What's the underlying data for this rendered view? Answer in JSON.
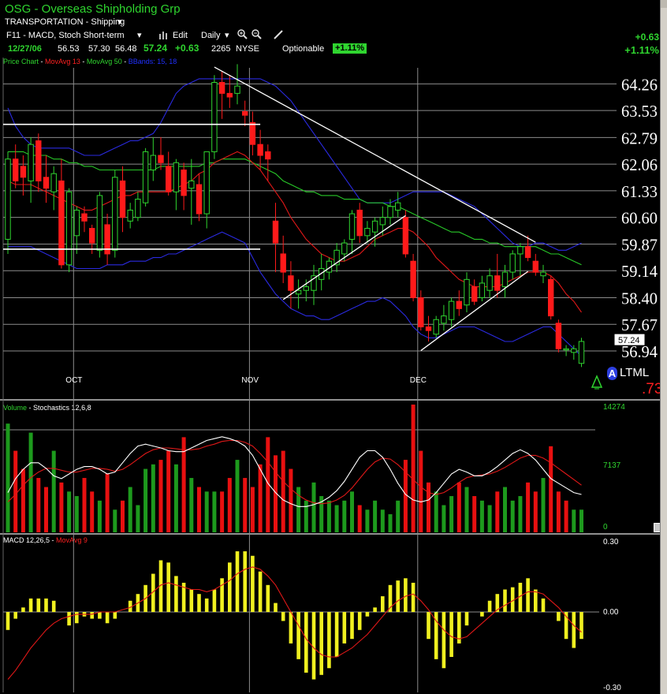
{
  "header": {
    "symbol_title": "OSG - Overseas Shipholding Grp",
    "sector": "TRANSPORTATION - Shipping",
    "study_set": "F11 - MACD, Stoch Short-term",
    "edit_label": "Edit",
    "period": "Daily",
    "icons": [
      "bar-chart-icon",
      "zoom-in-icon",
      "zoom-out-icon",
      "pencil-icon",
      "caret-down-icon"
    ]
  },
  "quote": {
    "date": "12/27/06",
    "open": "56.53",
    "high": "57.30",
    "low": "56.48",
    "close": "57.24",
    "change": "+0.63",
    "volume": "2265",
    "exchange": "NYSE",
    "optionable": "Optionable",
    "pct_badge": "+1.11%",
    "right_change": "+0.63",
    "right_pct": "+1.11%"
  },
  "legends": {
    "price": [
      {
        "text": "Price Chart",
        "color": "#2fd52f"
      },
      {
        "text": "MovAvg 13",
        "color": "#ff2020"
      },
      {
        "text": "MovAvg 50",
        "color": "#2fd52f"
      },
      {
        "text": "BBands: 15, 18",
        "color": "#2030ff"
      }
    ],
    "volume": [
      {
        "text": "Volume",
        "color": "#2fd52f"
      },
      {
        "text": "Stochastics 12,6,8",
        "color": "#ffffff"
      }
    ],
    "macd": [
      {
        "text": "MACD 12,26,5",
        "color": "#ffffff"
      },
      {
        "text": "MovAvg 9",
        "color": "#ff2020"
      }
    ]
  },
  "alert": {
    "letter": "A",
    "text": "LTML",
    "value": ".73"
  },
  "colors": {
    "up": "#2fd52f",
    "down": "#ff1a1a",
    "ma13": "#e01818",
    "ma50": "#28c828",
    "bb": "#2a2ae0",
    "grid": "#8c8c8c",
    "macd": "#f0f020",
    "stoch": "#ffffff"
  },
  "chart_data": [
    {
      "type": "candlestick",
      "title": "OSG - Overseas Shipholding Grp",
      "y_ticks": [
        "64.26",
        "63.53",
        "62.79",
        "62.06",
        "61.33",
        "60.60",
        "59.87",
        "59.14",
        "58.40",
        "57.67",
        "56.94"
      ],
      "ylim": [
        56.4,
        64.7
      ],
      "x_labels": [
        "OCT",
        "NOV",
        "DEC"
      ],
      "x_label_index": [
        9,
        32,
        54
      ],
      "last_price_label": "57.24",
      "candles": [
        [
          60.0,
          62.4,
          59.6,
          62.2
        ],
        [
          62.2,
          62.6,
          61.4,
          61.6
        ],
        [
          62.0,
          62.3,
          61.2,
          61.7
        ],
        [
          61.6,
          62.8,
          61.0,
          62.6
        ],
        [
          62.7,
          62.9,
          61.3,
          61.6
        ],
        [
          61.7,
          62.3,
          61.0,
          61.4
        ],
        [
          61.3,
          62.0,
          60.8,
          61.8
        ],
        [
          61.6,
          62.2,
          59.2,
          59.3
        ],
        [
          59.3,
          61.4,
          59.1,
          61.3
        ],
        [
          60.1,
          60.9,
          59.6,
          60.8
        ],
        [
          60.7,
          60.9,
          60.2,
          60.5
        ],
        [
          60.3,
          60.4,
          59.6,
          59.9
        ],
        [
          59.7,
          61.3,
          59.5,
          61.2
        ],
        [
          60.4,
          60.7,
          59.3,
          59.6
        ],
        [
          59.7,
          61.9,
          59.5,
          61.7
        ],
        [
          61.6,
          62.0,
          60.2,
          60.6
        ],
        [
          60.5,
          61.0,
          60.3,
          60.8
        ],
        [
          60.6,
          61.3,
          60.5,
          61.1
        ],
        [
          61.0,
          62.5,
          60.9,
          62.4
        ],
        [
          61.9,
          62.8,
          61.6,
          62.3
        ],
        [
          62.3,
          62.8,
          61.9,
          62.1
        ],
        [
          62.0,
          62.4,
          61.2,
          61.3
        ],
        [
          61.3,
          62.2,
          60.8,
          62.1
        ],
        [
          61.9,
          62.1,
          60.8,
          61.2
        ],
        [
          61.4,
          62.2,
          60.4,
          61.6
        ],
        [
          61.5,
          61.8,
          60.5,
          60.7
        ],
        [
          60.7,
          62.4,
          60.3,
          62.4
        ],
        [
          62.4,
          64.5,
          62.2,
          64.3
        ],
        [
          64.3,
          64.6,
          63.3,
          64.0
        ],
        [
          64.0,
          64.5,
          63.6,
          63.9
        ],
        [
          64.0,
          64.8,
          63.7,
          64.2
        ],
        [
          63.5,
          63.8,
          63.1,
          63.4
        ],
        [
          63.2,
          63.5,
          62.3,
          62.6
        ],
        [
          62.6,
          63.0,
          61.9,
          62.3
        ],
        [
          62.4,
          62.6,
          61.6,
          62.2
        ],
        [
          60.5,
          61.0,
          59.1,
          59.9
        ],
        [
          59.6,
          60.1,
          58.8,
          59.1
        ],
        [
          59.0,
          59.4,
          58.1,
          58.6
        ],
        [
          58.5,
          58.9,
          58.1,
          58.6
        ],
        [
          58.6,
          58.9,
          58.3,
          58.7
        ],
        [
          58.6,
          59.3,
          58.2,
          59.0
        ],
        [
          58.9,
          59.6,
          58.6,
          59.2
        ],
        [
          59.1,
          59.5,
          58.9,
          59.4
        ],
        [
          59.3,
          59.9,
          59.1,
          59.7
        ],
        [
          59.6,
          60.0,
          59.4,
          59.9
        ],
        [
          60.0,
          60.8,
          59.6,
          60.7
        ],
        [
          60.8,
          61.0,
          59.9,
          60.1
        ],
        [
          60.1,
          60.5,
          59.9,
          60.3
        ],
        [
          60.2,
          60.6,
          59.8,
          60.5
        ],
        [
          60.4,
          60.9,
          60.1,
          60.6
        ],
        [
          60.6,
          61.1,
          60.4,
          60.9
        ],
        [
          60.8,
          61.3,
          60.6,
          61.0
        ],
        [
          60.6,
          60.8,
          59.5,
          59.6
        ],
        [
          59.4,
          59.6,
          58.3,
          58.4
        ],
        [
          58.4,
          58.6,
          57.5,
          57.6
        ],
        [
          57.6,
          57.9,
          57.2,
          57.5
        ],
        [
          57.4,
          57.9,
          57.3,
          57.8
        ],
        [
          57.7,
          58.2,
          57.5,
          57.9
        ],
        [
          57.8,
          58.4,
          57.6,
          58.3
        ],
        [
          58.3,
          58.6,
          57.9,
          58.1
        ],
        [
          58.2,
          59.1,
          58.0,
          58.9
        ],
        [
          58.7,
          58.9,
          58.2,
          58.3
        ],
        [
          58.4,
          59.0,
          58.3,
          58.8
        ],
        [
          58.6,
          59.2,
          58.4,
          59.0
        ],
        [
          59.0,
          59.6,
          58.4,
          58.6
        ],
        [
          58.7,
          59.3,
          58.4,
          59.1
        ],
        [
          59.1,
          59.7,
          58.9,
          59.6
        ],
        [
          59.6,
          59.9,
          59.0,
          59.8
        ],
        [
          59.8,
          60.1,
          59.4,
          59.5
        ],
        [
          59.4,
          59.6,
          59.0,
          59.1
        ],
        [
          59.0,
          59.3,
          58.8,
          59.1
        ],
        [
          58.9,
          59.0,
          57.8,
          57.9
        ],
        [
          57.7,
          57.8,
          56.9,
          57.0
        ],
        [
          57.0,
          57.1,
          56.8,
          57.0
        ],
        [
          56.9,
          57.1,
          56.7,
          57.0
        ],
        [
          56.6,
          57.3,
          56.5,
          57.2
        ]
      ],
      "ma13": [
        61.6,
        61.5,
        61.5,
        61.5,
        61.4,
        61.3,
        61.2,
        61.1,
        61.0,
        60.9,
        60.8,
        60.8,
        60.9,
        61.0,
        61.1,
        61.2,
        61.2,
        61.3,
        61.3,
        61.3,
        61.3,
        61.3,
        61.4,
        61.5,
        61.6,
        61.8,
        61.9,
        62.1,
        62.2,
        62.3,
        62.4,
        62.3,
        62.1,
        61.9,
        61.6,
        61.3,
        61.0,
        60.6,
        60.3,
        60.0,
        59.8,
        59.6,
        59.5,
        59.4,
        59.4,
        59.5,
        59.6,
        59.8,
        60.0,
        60.1,
        60.2,
        60.3,
        60.3,
        60.2,
        60.0,
        59.8,
        59.5,
        59.3,
        59.1,
        58.9,
        58.8,
        58.7,
        58.7,
        58.7,
        58.7,
        58.8,
        58.9,
        59.0,
        59.1,
        59.1,
        59.1,
        59.0,
        58.8,
        58.5,
        58.3,
        58.0
      ],
      "ma50": [
        62.4,
        62.4,
        62.4,
        62.3,
        62.3,
        62.3,
        62.2,
        62.2,
        62.1,
        62.1,
        62.0,
        62.0,
        61.9,
        61.9,
        61.9,
        61.9,
        61.9,
        61.9,
        61.9,
        61.9,
        62.0,
        62.0,
        62.0,
        62.0,
        62.0,
        62.0,
        62.1,
        62.1,
        62.2,
        62.2,
        62.2,
        62.2,
        62.1,
        62.0,
        61.9,
        61.8,
        61.6,
        61.5,
        61.4,
        61.3,
        61.3,
        61.2,
        61.2,
        61.2,
        61.1,
        61.1,
        61.1,
        61.0,
        61.0,
        61.0,
        60.9,
        60.9,
        60.8,
        60.7,
        60.6,
        60.5,
        60.4,
        60.3,
        60.2,
        60.2,
        60.1,
        60.0,
        60.0,
        59.9,
        59.9,
        59.8,
        59.8,
        59.8,
        59.8,
        59.8,
        59.7,
        59.6,
        59.6,
        59.5,
        59.4,
        59.3
      ],
      "bb_upper": [
        63.6,
        63.1,
        62.8,
        62.6,
        62.5,
        62.5,
        62.5,
        62.5,
        62.5,
        62.4,
        62.3,
        62.3,
        62.3,
        62.4,
        62.5,
        62.6,
        62.7,
        62.7,
        62.8,
        62.9,
        63.2,
        63.6,
        64.0,
        64.2,
        64.3,
        64.4,
        64.4,
        64.4,
        64.4,
        64.4,
        64.4,
        64.4,
        64.4,
        64.4,
        64.3,
        64.2,
        64.0,
        63.8,
        63.5,
        63.2,
        62.9,
        62.6,
        62.3,
        62.0,
        61.7,
        61.4,
        61.1,
        61.0,
        61.0,
        61.0,
        61.0,
        61.1,
        61.2,
        61.3,
        61.3,
        61.3,
        61.3,
        61.3,
        61.2,
        61.1,
        61.0,
        60.9,
        60.7,
        60.5,
        60.3,
        60.1,
        59.9,
        59.8,
        59.8,
        59.9,
        59.9,
        59.8,
        59.7,
        59.7,
        59.8,
        59.9
      ],
      "bb_lower": [
        59.8,
        59.8,
        59.8,
        59.8,
        59.7,
        59.6,
        59.5,
        59.4,
        59.3,
        59.2,
        59.2,
        59.2,
        59.2,
        59.3,
        59.3,
        59.3,
        59.4,
        59.4,
        59.4,
        59.5,
        59.5,
        59.6,
        59.6,
        59.7,
        59.8,
        59.9,
        60.0,
        60.1,
        60.2,
        60.1,
        60.0,
        59.9,
        59.5,
        59.1,
        58.8,
        58.5,
        58.3,
        58.1,
        58.0,
        57.9,
        57.9,
        57.8,
        57.8,
        57.9,
        58.0,
        58.1,
        58.2,
        58.3,
        58.3,
        58.4,
        58.3,
        58.1,
        57.9,
        57.6,
        57.4,
        57.3,
        57.3,
        57.4,
        57.5,
        57.6,
        57.6,
        57.6,
        57.5,
        57.4,
        57.3,
        57.2,
        57.2,
        57.3,
        57.4,
        57.5,
        57.6,
        57.6,
        57.4,
        57.2,
        57.0,
        56.8
      ],
      "horizontal_lines": [
        {
          "from": 0,
          "to": 33,
          "y": 63.15
        },
        {
          "from": 0,
          "to": 33,
          "y": 59.73
        }
      ],
      "trendlines": [
        {
          "x1": 27,
          "y1": 64.72,
          "x2": 69,
          "y2": 59.92
        },
        {
          "x1": 36,
          "y1": 58.35,
          "x2": 52,
          "y2": 60.65
        },
        {
          "x1": 54,
          "y1": 56.95,
          "x2": 68,
          "y2": 59.12
        }
      ]
    },
    {
      "type": "bar",
      "title": "Volume",
      "y_ticks": [
        "14274",
        "7137",
        "0"
      ],
      "ylim": [
        0,
        14274
      ],
      "volume": [
        12000,
        9000,
        7000,
        11000,
        6000,
        5000,
        9000,
        5500,
        4500,
        4000,
        6000,
        4500,
        3500,
        6500,
        2500,
        3500,
        5000,
        3000,
        7000,
        7500,
        8000,
        9000,
        7500,
        10500,
        6000,
        5000,
        4500,
        4500,
        4500,
        6000,
        8000,
        6000,
        5000,
        7500,
        10500,
        8500,
        9000,
        7000,
        5000,
        3500,
        5500,
        4000,
        3500,
        3000,
        3500,
        4500,
        3000,
        2500,
        3500,
        2500,
        2000,
        3500,
        8000,
        14100,
        9000,
        5500,
        4500,
        3000,
        4000,
        5500,
        5000,
        4000,
        3500,
        3000,
        4500,
        5000,
        3500,
        4000,
        5500,
        4500,
        6000,
        9500,
        4500,
        3500,
        2500,
        2500
      ],
      "vol_up": [
        1,
        0,
        0,
        1,
        0,
        0,
        1,
        0,
        1,
        1,
        0,
        0,
        1,
        0,
        1,
        0,
        1,
        1,
        1,
        1,
        0,
        0,
        1,
        0,
        1,
        0,
        1,
        1,
        0,
        0,
        1,
        0,
        0,
        0,
        0,
        0,
        0,
        0,
        1,
        1,
        1,
        1,
        1,
        1,
        1,
        1,
        0,
        1,
        1,
        1,
        1,
        1,
        0,
        0,
        0,
        0,
        1,
        1,
        1,
        0,
        1,
        0,
        1,
        1,
        0,
        1,
        1,
        1,
        0,
        0,
        1,
        0,
        0,
        0,
        1,
        1
      ],
      "stoch": [
        30,
        45,
        55,
        62,
        62,
        56,
        48,
        45,
        50,
        55,
        58,
        58,
        55,
        50,
        52,
        62,
        72,
        80,
        82,
        80,
        78,
        75,
        74,
        74,
        78,
        82,
        86,
        88,
        90,
        88,
        85,
        80,
        70,
        55,
        40,
        30,
        22,
        18,
        15,
        15,
        17,
        20,
        25,
        32,
        42,
        55,
        68,
        75,
        75,
        68,
        55,
        40,
        28,
        22,
        20,
        22,
        30,
        40,
        50,
        55,
        52,
        48,
        48,
        52,
        58,
        65,
        72,
        76,
        72,
        65,
        55,
        45,
        40,
        35,
        30,
        28
      ],
      "stoch_signal": [
        20,
        28,
        38,
        46,
        52,
        56,
        56,
        54,
        52,
        52,
        54,
        56,
        56,
        55,
        53,
        55,
        60,
        66,
        72,
        76,
        78,
        78,
        77,
        76,
        76,
        77,
        80,
        82,
        85,
        86,
        86,
        84,
        80,
        72,
        63,
        52,
        42,
        34,
        27,
        22,
        19,
        18,
        19,
        22,
        27,
        35,
        45,
        55,
        63,
        67,
        66,
        60,
        52,
        44,
        36,
        30,
        28,
        30,
        35,
        41,
        46,
        48,
        49,
        50,
        53,
        57,
        62,
        67,
        70,
        70,
        67,
        62,
        56,
        50,
        44,
        38
      ]
    },
    {
      "type": "bar",
      "title": "MACD 12,26,5",
      "y_ticks": [
        "0.30",
        "0.00",
        "-0.30"
      ],
      "ylim": [
        -0.32,
        0.32
      ],
      "macd": [
        -0.08,
        -0.03,
        0.02,
        0.06,
        0.06,
        0.06,
        0.05,
        0.0,
        -0.06,
        -0.05,
        -0.02,
        -0.03,
        -0.03,
        -0.05,
        -0.03,
        0.0,
        0.05,
        0.08,
        0.12,
        0.17,
        0.23,
        0.22,
        0.16,
        0.13,
        0.1,
        0.08,
        0.06,
        0.1,
        0.15,
        0.22,
        0.27,
        0.27,
        0.25,
        0.18,
        0.12,
        0.04,
        -0.04,
        -0.14,
        -0.21,
        -0.27,
        -0.3,
        -0.28,
        -0.25,
        -0.2,
        -0.14,
        -0.12,
        -0.08,
        -0.02,
        0.02,
        0.07,
        0.12,
        0.14,
        0.15,
        0.13,
        0.0,
        -0.12,
        -0.21,
        -0.25,
        -0.2,
        -0.14,
        -0.06,
        0.0,
        -0.02,
        0.05,
        0.08,
        0.1,
        0.11,
        0.13,
        0.15,
        0.1,
        0.06,
        0.0,
        -0.04,
        -0.12,
        -0.16,
        -0.12
      ],
      "signal": [
        -0.3,
        -0.26,
        -0.21,
        -0.16,
        -0.12,
        -0.08,
        -0.05,
        -0.03,
        -0.02,
        -0.01,
        -0.01,
        -0.01,
        0.0,
        0.0,
        0.0,
        0.01,
        0.02,
        0.04,
        0.06,
        0.09,
        0.12,
        0.13,
        0.12,
        0.11,
        0.1,
        0.1,
        0.09,
        0.1,
        0.12,
        0.14,
        0.17,
        0.19,
        0.2,
        0.19,
        0.16,
        0.12,
        0.06,
        0.0,
        -0.06,
        -0.12,
        -0.16,
        -0.19,
        -0.2,
        -0.2,
        -0.18,
        -0.16,
        -0.13,
        -0.1,
        -0.06,
        -0.02,
        0.02,
        0.05,
        0.07,
        0.08,
        0.05,
        0.01,
        -0.04,
        -0.08,
        -0.11,
        -0.12,
        -0.11,
        -0.08,
        -0.05,
        -0.02,
        0.01,
        0.03,
        0.05,
        0.07,
        0.09,
        0.09,
        0.08,
        0.05,
        0.02,
        -0.02,
        -0.06,
        -0.09
      ]
    }
  ]
}
